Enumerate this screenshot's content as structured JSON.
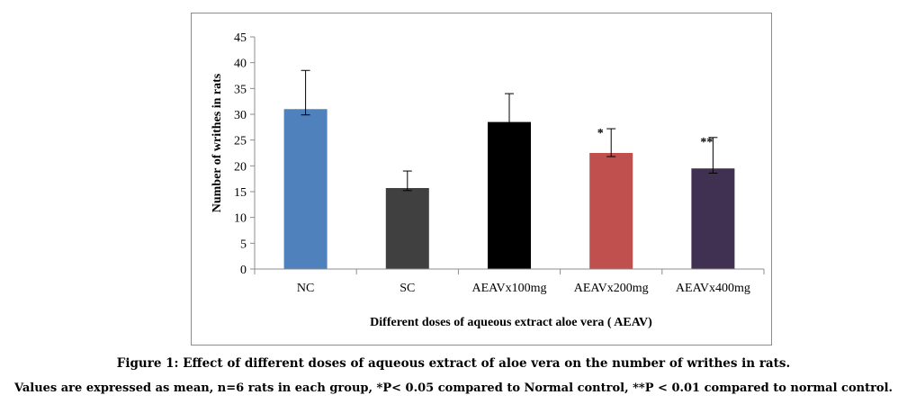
{
  "chart_data": {
    "type": "bar",
    "categories": [
      "NC",
      "SC",
      "AEAVx100mg",
      "AEAVx200mg",
      "AEAVx400mg"
    ],
    "values": [
      31,
      15.7,
      28.5,
      22.5,
      19.5
    ],
    "errors": [
      7.5,
      3.3,
      5.5,
      4.7,
      6
    ],
    "significance": [
      "",
      "",
      "",
      "*",
      "**"
    ],
    "colors": [
      "#4f81bd",
      "#404040",
      "#000000",
      "#c0504d",
      "#403152"
    ],
    "xlabel": "Different doses of aqueous extract aloe vera ( AEAV)",
    "ylabel": "Number of writhes in rats",
    "ylim": [
      0,
      45
    ],
    "yticks": [
      0,
      5,
      10,
      15,
      20,
      25,
      30,
      35,
      40,
      45
    ],
    "grid": false,
    "legend": "none"
  },
  "caption": {
    "title": "Figure 1: Effect of different doses of aqueous extract of aloe vera on the number of writhes in rats.",
    "note": "Values are expressed as mean, n=6 rats in each group, *P< 0.05 compared to Normal control, **P < 0.01 compared to normal control."
  }
}
